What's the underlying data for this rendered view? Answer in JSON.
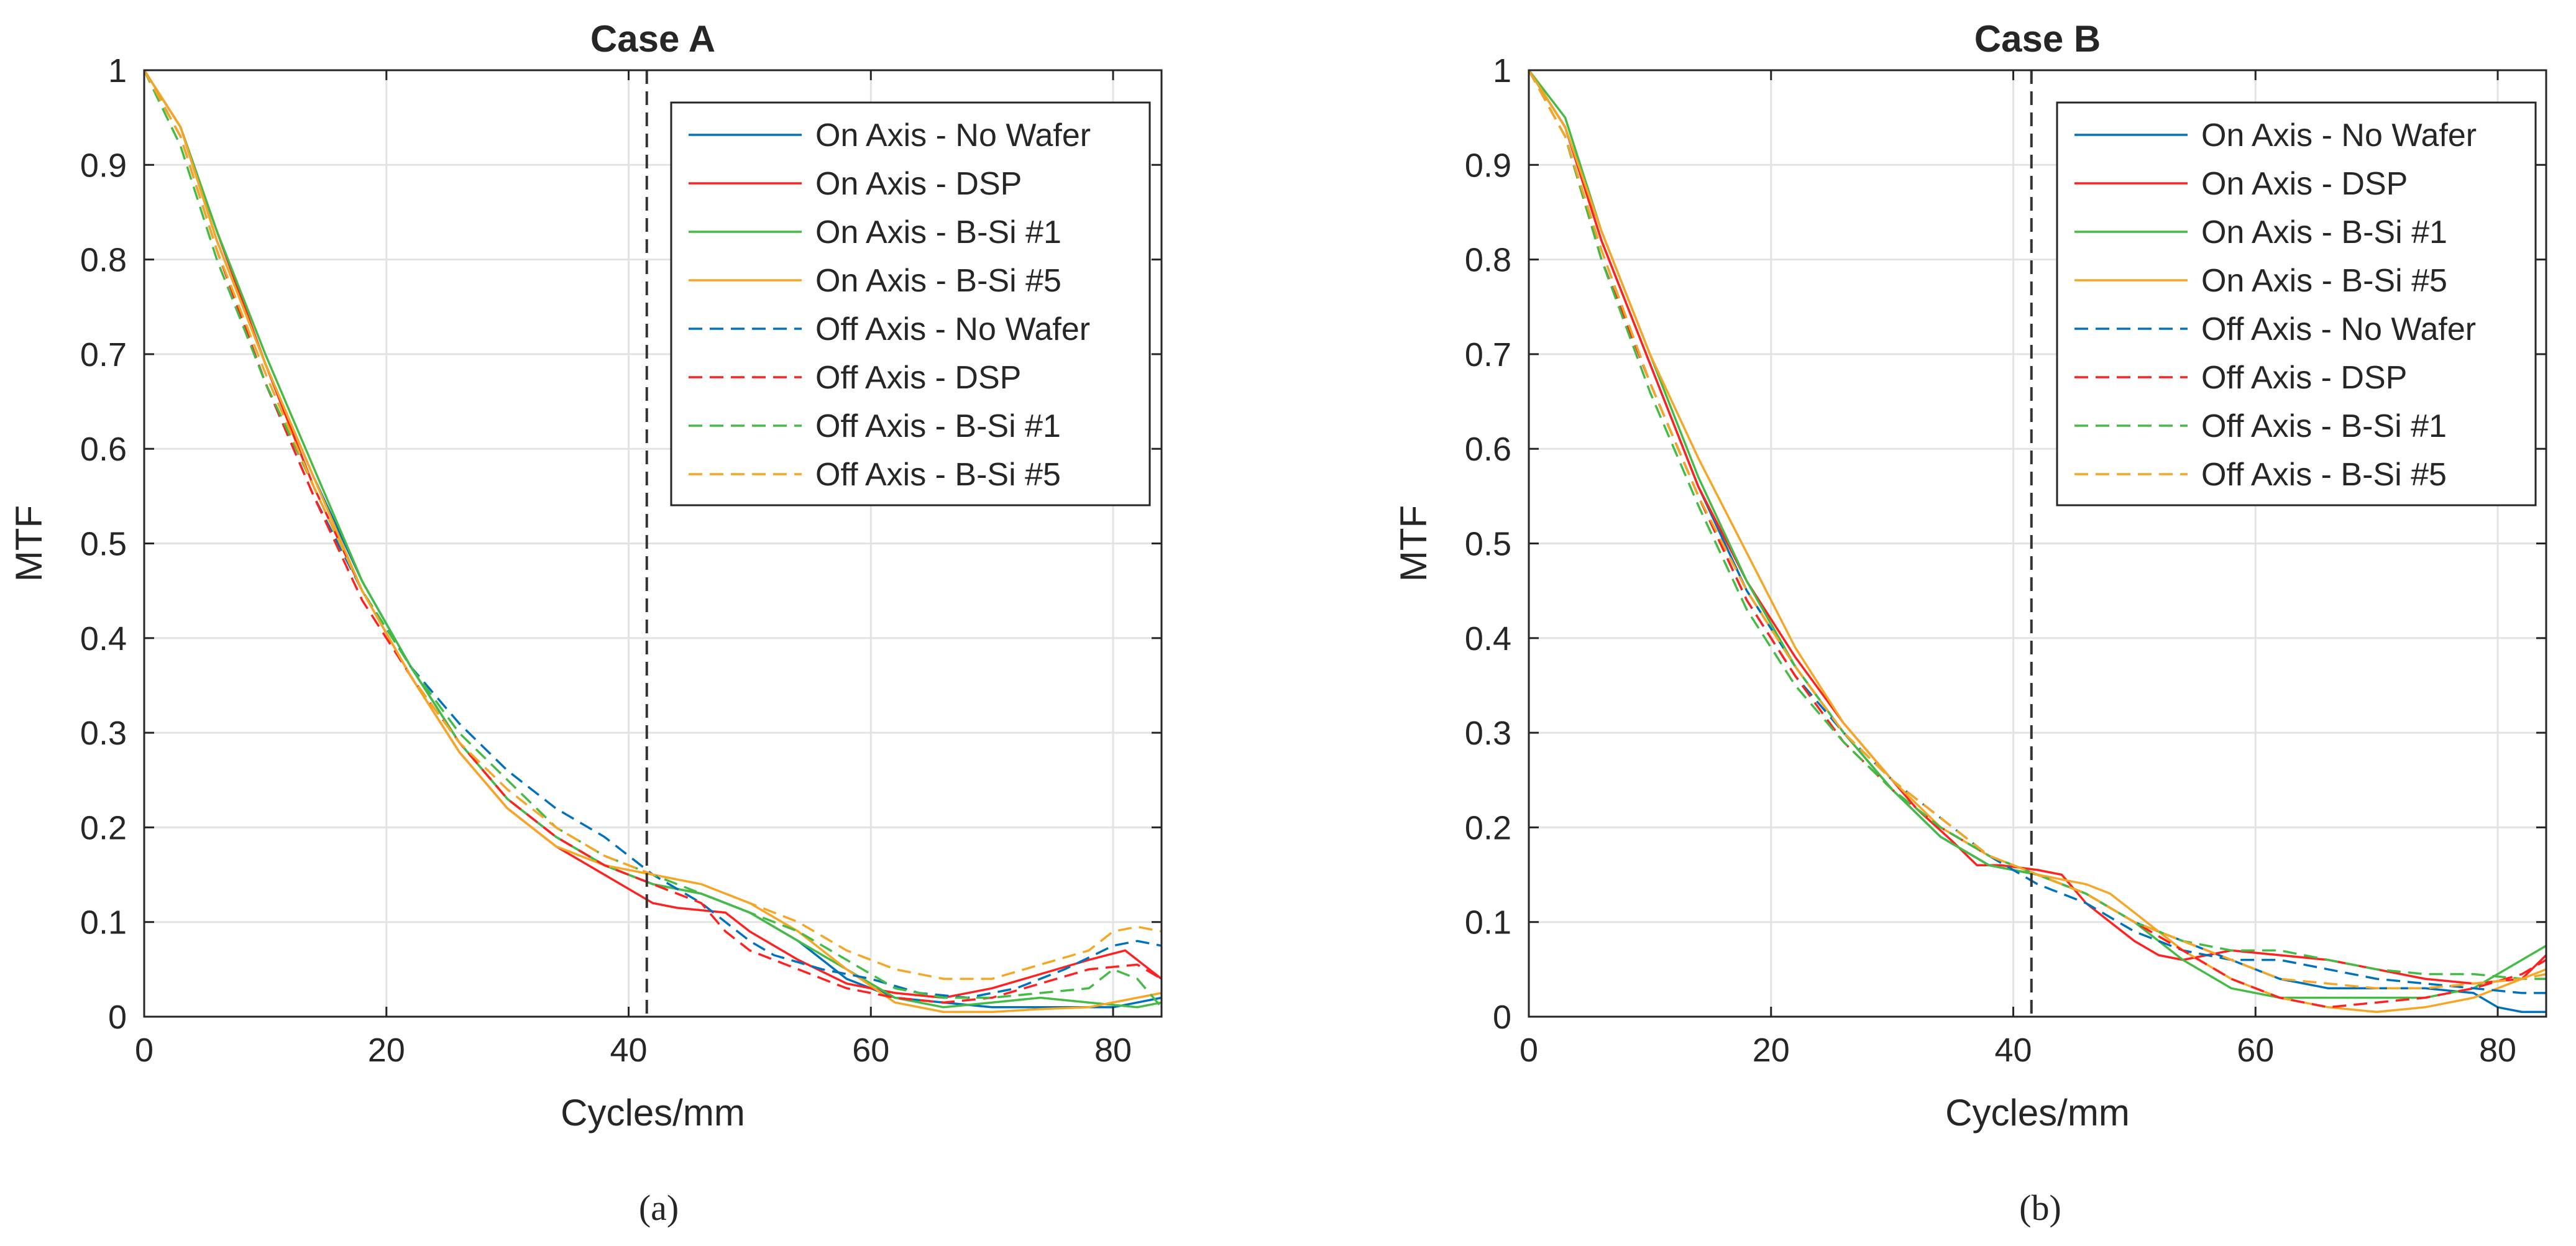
{
  "chart_data": [
    {
      "type": "line",
      "panel": "(a)",
      "title": "Case A",
      "xlabel": "Cycles/mm",
      "ylabel": "MTF",
      "xlim": [
        0,
        84
      ],
      "ylim": [
        0,
        1
      ],
      "xticks": [
        0,
        20,
        40,
        60,
        80
      ],
      "yticks": [
        0,
        0.1,
        0.2,
        0.3,
        0.4,
        0.5,
        0.6,
        0.7,
        0.8,
        0.9,
        1
      ],
      "grid": true,
      "legend_position": "top-right",
      "vline": {
        "x": 41.5,
        "style": "dashed",
        "color": "#333333"
      },
      "series": [
        {
          "name": "On Axis - No Wafer",
          "style": "solid",
          "color": "#0072BD",
          "x": [
            0,
            3,
            6,
            10,
            14,
            18,
            22,
            26,
            30,
            34,
            38,
            42,
            46,
            50,
            54,
            58,
            62,
            66,
            70,
            74,
            78,
            80,
            82,
            84
          ],
          "y": [
            1,
            0.94,
            0.82,
            0.69,
            0.57,
            0.46,
            0.37,
            0.29,
            0.23,
            0.19,
            0.16,
            0.14,
            0.13,
            0.11,
            0.08,
            0.04,
            0.02,
            0.015,
            0.01,
            0.01,
            0.01,
            0.01,
            0.015,
            0.02
          ]
        },
        {
          "name": "On Axis - DSP",
          "style": "solid",
          "color": "#FF2020",
          "x": [
            0,
            3,
            6,
            10,
            14,
            18,
            22,
            26,
            30,
            34,
            38,
            40,
            42,
            44,
            48,
            50,
            54,
            58,
            62,
            66,
            70,
            74,
            78,
            81,
            82,
            84
          ],
          "y": [
            1,
            0.94,
            0.83,
            0.69,
            0.56,
            0.45,
            0.36,
            0.28,
            0.22,
            0.18,
            0.15,
            0.135,
            0.12,
            0.115,
            0.11,
            0.09,
            0.06,
            0.035,
            0.025,
            0.02,
            0.03,
            0.045,
            0.06,
            0.07,
            0.06,
            0.04
          ]
        },
        {
          "name": "On Axis - B-Si #1",
          "style": "solid",
          "color": "#44BB44",
          "x": [
            0,
            3,
            6,
            10,
            14,
            18,
            22,
            26,
            30,
            34,
            38,
            42,
            46,
            50,
            54,
            58,
            62,
            66,
            70,
            74,
            78,
            82,
            84
          ],
          "y": [
            1,
            0.94,
            0.83,
            0.7,
            0.58,
            0.46,
            0.37,
            0.29,
            0.23,
            0.19,
            0.16,
            0.14,
            0.13,
            0.11,
            0.08,
            0.05,
            0.02,
            0.01,
            0.015,
            0.02,
            0.015,
            0.01,
            0.015
          ]
        },
        {
          "name": "On Axis - B-Si #5",
          "style": "solid",
          "color": "#F5A623",
          "x": [
            0,
            3,
            6,
            10,
            14,
            18,
            22,
            26,
            30,
            34,
            38,
            42,
            46,
            50,
            54,
            58,
            62,
            66,
            70,
            74,
            78,
            82,
            84
          ],
          "y": [
            1,
            0.94,
            0.82,
            0.69,
            0.57,
            0.45,
            0.36,
            0.28,
            0.22,
            0.18,
            0.16,
            0.15,
            0.14,
            0.12,
            0.09,
            0.05,
            0.015,
            0.005,
            0.005,
            0.008,
            0.01,
            0.02,
            0.025
          ]
        },
        {
          "name": "Off Axis - No Wafer",
          "style": "dashed",
          "color": "#0072BD",
          "x": [
            0,
            3,
            6,
            10,
            14,
            18,
            22,
            26,
            30,
            34,
            38,
            42,
            46,
            50,
            52,
            56,
            60,
            64,
            68,
            72,
            76,
            80,
            82,
            84
          ],
          "y": [
            1,
            0.93,
            0.81,
            0.67,
            0.55,
            0.45,
            0.37,
            0.31,
            0.26,
            0.22,
            0.19,
            0.15,
            0.12,
            0.08,
            0.065,
            0.05,
            0.04,
            0.025,
            0.02,
            0.03,
            0.05,
            0.075,
            0.08,
            0.075
          ]
        },
        {
          "name": "Off Axis - DSP",
          "style": "dashed",
          "color": "#FF2020",
          "x": [
            0,
            3,
            6,
            10,
            14,
            18,
            22,
            26,
            30,
            34,
            38,
            42,
            46,
            48,
            50,
            54,
            58,
            62,
            66,
            70,
            74,
            78,
            82,
            84
          ],
          "y": [
            1,
            0.93,
            0.81,
            0.67,
            0.55,
            0.44,
            0.36,
            0.29,
            0.23,
            0.19,
            0.16,
            0.14,
            0.12,
            0.09,
            0.07,
            0.05,
            0.03,
            0.02,
            0.015,
            0.02,
            0.035,
            0.05,
            0.055,
            0.04
          ]
        },
        {
          "name": "Off Axis - B-Si #1",
          "style": "dashed",
          "color": "#44BB44",
          "x": [
            0,
            3,
            6,
            10,
            14,
            18,
            22,
            26,
            30,
            34,
            38,
            42,
            46,
            50,
            54,
            58,
            62,
            66,
            70,
            74,
            78,
            80,
            82,
            84
          ],
          "y": [
            1,
            0.92,
            0.8,
            0.67,
            0.56,
            0.45,
            0.37,
            0.3,
            0.25,
            0.2,
            0.17,
            0.15,
            0.13,
            0.11,
            0.09,
            0.06,
            0.03,
            0.02,
            0.02,
            0.025,
            0.03,
            0.05,
            0.04,
            0.01
          ]
        },
        {
          "name": "Off Axis - B-Si #5",
          "style": "dashed",
          "color": "#F5A623",
          "x": [
            0,
            3,
            6,
            10,
            14,
            18,
            22,
            26,
            30,
            34,
            38,
            42,
            46,
            50,
            54,
            58,
            62,
            66,
            70,
            74,
            78,
            80,
            82,
            84
          ],
          "y": [
            1,
            0.93,
            0.81,
            0.68,
            0.56,
            0.45,
            0.36,
            0.29,
            0.24,
            0.2,
            0.17,
            0.15,
            0.14,
            0.12,
            0.1,
            0.07,
            0.05,
            0.04,
            0.04,
            0.055,
            0.07,
            0.09,
            0.095,
            0.09
          ]
        }
      ]
    },
    {
      "type": "line",
      "panel": "(b)",
      "title": "Case B",
      "xlabel": "Cycles/mm",
      "ylabel": "MTF",
      "xlim": [
        0,
        84
      ],
      "ylim": [
        0,
        1
      ],
      "xticks": [
        0,
        20,
        40,
        60,
        80
      ],
      "yticks": [
        0,
        0.1,
        0.2,
        0.3,
        0.4,
        0.5,
        0.6,
        0.7,
        0.8,
        0.9,
        1
      ],
      "grid": true,
      "legend_position": "top-right",
      "vline": {
        "x": 41.5,
        "style": "dashed",
        "color": "#333333"
      },
      "series": [
        {
          "name": "On Axis - No Wafer",
          "style": "solid",
          "color": "#0072BD",
          "x": [
            0,
            3,
            6,
            10,
            14,
            18,
            22,
            26,
            30,
            34,
            38,
            42,
            46,
            50,
            54,
            58,
            62,
            66,
            70,
            74,
            78,
            80,
            82,
            84
          ],
          "y": [
            1,
            0.94,
            0.82,
            0.69,
            0.56,
            0.45,
            0.37,
            0.3,
            0.24,
            0.19,
            0.16,
            0.15,
            0.13,
            0.1,
            0.08,
            0.06,
            0.04,
            0.03,
            0.03,
            0.03,
            0.025,
            0.01,
            0.005,
            0.005
          ]
        },
        {
          "name": "On Axis - DSP",
          "style": "solid",
          "color": "#FF2020",
          "x": [
            0,
            3,
            6,
            10,
            14,
            18,
            22,
            26,
            30,
            32,
            35,
            37,
            39,
            42,
            44,
            46,
            50,
            52,
            54,
            56,
            58,
            62,
            66,
            70,
            74,
            78,
            82,
            84
          ],
          "y": [
            1,
            0.94,
            0.82,
            0.69,
            0.56,
            0.46,
            0.38,
            0.31,
            0.25,
            0.22,
            0.185,
            0.16,
            0.16,
            0.155,
            0.15,
            0.12,
            0.08,
            0.065,
            0.06,
            0.065,
            0.07,
            0.065,
            0.06,
            0.05,
            0.04,
            0.035,
            0.04,
            0.065
          ]
        },
        {
          "name": "On Axis - B-Si #1",
          "style": "solid",
          "color": "#44BB44",
          "x": [
            0,
            3,
            6,
            10,
            14,
            18,
            22,
            26,
            30,
            34,
            38,
            42,
            46,
            50,
            54,
            58,
            62,
            66,
            70,
            74,
            78,
            82,
            84
          ],
          "y": [
            1,
            0.95,
            0.83,
            0.7,
            0.57,
            0.46,
            0.37,
            0.3,
            0.24,
            0.19,
            0.16,
            0.15,
            0.13,
            0.1,
            0.06,
            0.03,
            0.02,
            0.02,
            0.02,
            0.02,
            0.03,
            0.06,
            0.075
          ]
        },
        {
          "name": "On Axis - B-Si #5",
          "style": "solid",
          "color": "#F5A623",
          "x": [
            0,
            3,
            6,
            10,
            14,
            18,
            22,
            26,
            30,
            34,
            38,
            42,
            46,
            48,
            50,
            54,
            58,
            62,
            66,
            70,
            74,
            78,
            82,
            84
          ],
          "y": [
            1,
            0.94,
            0.83,
            0.7,
            0.59,
            0.49,
            0.39,
            0.31,
            0.25,
            0.2,
            0.17,
            0.15,
            0.14,
            0.13,
            0.11,
            0.07,
            0.04,
            0.02,
            0.01,
            0.005,
            0.01,
            0.02,
            0.04,
            0.05
          ]
        },
        {
          "name": "Off Axis - No Wafer",
          "style": "dashed",
          "color": "#0072BD",
          "x": [
            0,
            3,
            6,
            10,
            14,
            18,
            22,
            26,
            30,
            34,
            38,
            42,
            46,
            50,
            54,
            58,
            62,
            66,
            70,
            74,
            78,
            82,
            84
          ],
          "y": [
            1,
            0.93,
            0.81,
            0.67,
            0.55,
            0.44,
            0.36,
            0.3,
            0.25,
            0.21,
            0.17,
            0.14,
            0.12,
            0.09,
            0.07,
            0.06,
            0.06,
            0.05,
            0.04,
            0.035,
            0.03,
            0.025,
            0.025
          ]
        },
        {
          "name": "Off Axis - DSP",
          "style": "dashed",
          "color": "#FF2020",
          "x": [
            0,
            3,
            6,
            10,
            14,
            18,
            22,
            26,
            30,
            34,
            38,
            42,
            46,
            50,
            54,
            58,
            62,
            66,
            70,
            74,
            78,
            82,
            84
          ],
          "y": [
            1,
            0.93,
            0.8,
            0.67,
            0.55,
            0.44,
            0.36,
            0.29,
            0.24,
            0.2,
            0.17,
            0.15,
            0.13,
            0.1,
            0.07,
            0.04,
            0.02,
            0.01,
            0.015,
            0.02,
            0.03,
            0.045,
            0.06
          ]
        },
        {
          "name": "Off Axis - B-Si #1",
          "style": "dashed",
          "color": "#44BB44",
          "x": [
            0,
            3,
            6,
            10,
            14,
            18,
            22,
            26,
            30,
            34,
            38,
            42,
            46,
            50,
            54,
            58,
            62,
            66,
            70,
            74,
            78,
            82,
            84
          ],
          "y": [
            1,
            0.93,
            0.8,
            0.66,
            0.54,
            0.43,
            0.35,
            0.29,
            0.24,
            0.2,
            0.17,
            0.15,
            0.13,
            0.1,
            0.08,
            0.07,
            0.07,
            0.06,
            0.05,
            0.045,
            0.045,
            0.04,
            0.04
          ]
        },
        {
          "name": "Off Axis - B-Si #5",
          "style": "dashed",
          "color": "#F5A623",
          "x": [
            0,
            3,
            6,
            10,
            14,
            18,
            22,
            26,
            30,
            34,
            38,
            42,
            46,
            50,
            54,
            58,
            62,
            66,
            70,
            74,
            78,
            82,
            84
          ],
          "y": [
            1,
            0.93,
            0.81,
            0.67,
            0.55,
            0.45,
            0.37,
            0.3,
            0.25,
            0.21,
            0.17,
            0.15,
            0.13,
            0.1,
            0.08,
            0.06,
            0.04,
            0.035,
            0.03,
            0.03,
            0.035,
            0.04,
            0.045
          ]
        }
      ]
    }
  ]
}
